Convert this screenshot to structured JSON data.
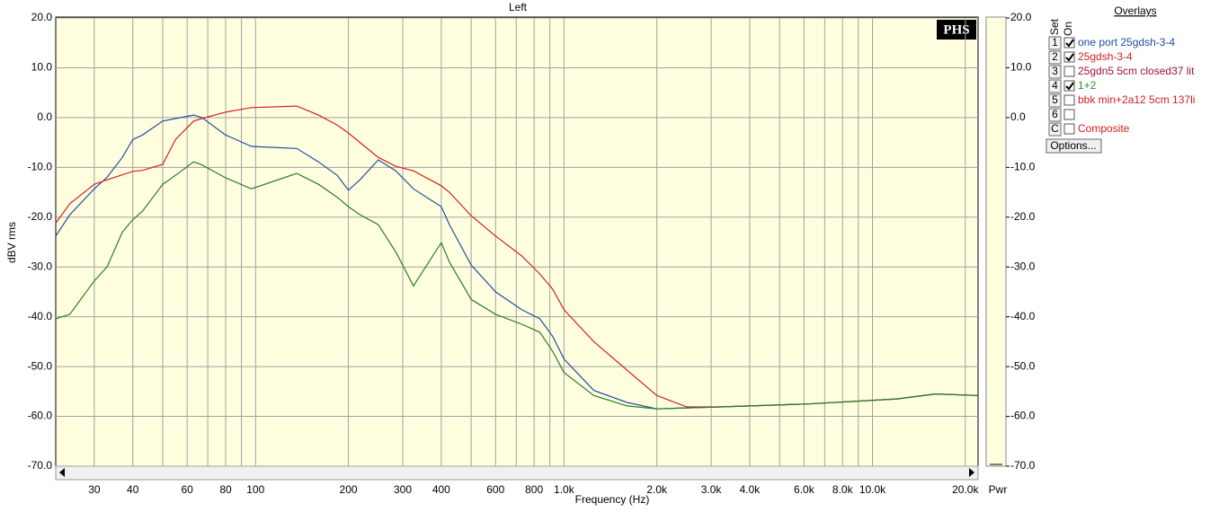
{
  "chart_data": {
    "type": "line",
    "title": "Left",
    "ylabel": "dBV rms",
    "xlabel": "Frequency (Hz)",
    "y2label": "Pwr",
    "badge": "PHS",
    "xlog": true,
    "grid": true,
    "xlim": [
      22.5,
      22000
    ],
    "ylim": [
      -70,
      20
    ],
    "yticks": [
      {
        "value": 20,
        "label": "20.0"
      },
      {
        "value": 10,
        "label": "10.0"
      },
      {
        "value": 0,
        "label": "0.0"
      },
      {
        "value": -10,
        "label": "-10.0"
      },
      {
        "value": -20,
        "label": "-20.0"
      },
      {
        "value": -30,
        "label": "-30.0"
      },
      {
        "value": -40,
        "label": "-40.0"
      },
      {
        "value": -50,
        "label": "-50.0"
      },
      {
        "value": -60,
        "label": "-60.0"
      },
      {
        "value": -70,
        "label": "-70.0"
      }
    ],
    "xticks": [
      30,
      40,
      60,
      80,
      100,
      200,
      300,
      400,
      600,
      800,
      {
        "value": 1000,
        "label": "1.0k"
      },
      {
        "value": 2000,
        "label": "2.0k"
      },
      {
        "value": 3000,
        "label": "3.0k"
      },
      {
        "value": 4000,
        "label": "4.0k"
      },
      {
        "value": 6000,
        "label": "6.0k"
      },
      {
        "value": 8000,
        "label": "8.0k"
      },
      {
        "value": 10000,
        "label": "10.0k"
      },
      {
        "value": 20000,
        "label": "20.0k"
      }
    ],
    "xgrid": [
      50,
      70,
      90,
      500,
      700,
      900,
      5000,
      7000,
      9000
    ],
    "x": [
      22.5,
      25,
      30,
      33,
      37,
      40,
      43,
      50,
      55,
      63,
      67,
      80,
      97,
      136,
      160,
      184,
      200,
      218,
      250,
      285,
      325,
      400,
      425,
      500,
      600,
      730,
      835,
      920,
      1000,
      1250,
      1600,
      2000,
      2500,
      3200,
      6200,
      12000,
      16000,
      22000
    ],
    "series": [
      {
        "name": "one port 25gdsh-3-4",
        "color": "#1f4ea0",
        "values": [
          -23.8,
          -19.5,
          -14.3,
          -12,
          -8,
          -4.4,
          -3.5,
          -0.7,
          -0.2,
          0.5,
          0,
          -3.5,
          -5.8,
          -6.2,
          -8.9,
          -11.6,
          -14.6,
          -12.5,
          -8.5,
          -10.7,
          -14.3,
          -17.9,
          -21.5,
          -29.6,
          -35,
          -38.6,
          -40.4,
          -44,
          -48.5,
          -54.8,
          -57.2,
          -58.5,
          -58.3,
          -58.1,
          -57.5,
          -56.5,
          -55.5,
          -55.8
        ]
      },
      {
        "name": "25gdsh-3-4",
        "color": "#d42020",
        "values": [
          -21.2,
          -17.3,
          -13.4,
          -12.5,
          -11.5,
          -10.8,
          -10.6,
          -9.4,
          -4.4,
          -0.7,
          -0.2,
          1.1,
          2,
          2.3,
          0.5,
          -1.5,
          -3.1,
          -5,
          -8,
          -9.8,
          -10.7,
          -13.7,
          -15,
          -19.7,
          -23.8,
          -27.8,
          -31.4,
          -34.5,
          -38.6,
          -45,
          -50.7,
          -55.8,
          -58.1,
          -58.1,
          -57.5,
          -56.5,
          -55.5,
          -55.8
        ]
      },
      {
        "name": "1+2",
        "color": "#2a7a2a",
        "values": [
          -40.4,
          -39.5,
          -32.8,
          -30,
          -23,
          -20.5,
          -18.8,
          -13.4,
          -11.6,
          -8.9,
          -9.5,
          -12.1,
          -14.3,
          -11.2,
          -13.4,
          -16,
          -17.9,
          -19.5,
          -21.5,
          -27,
          -33.8,
          -25.1,
          -29,
          -36.5,
          -39.5,
          -41.5,
          -43.1,
          -47,
          -51.2,
          -55.8,
          -57.9,
          -58.5,
          -58.3,
          -58.1,
          -57.5,
          -56.5,
          -55.5,
          -55.8
        ]
      }
    ]
  },
  "overlays": {
    "title": "Overlays",
    "set_label": "Set",
    "on_label": "On",
    "button": "Options...",
    "items": [
      {
        "set": "1",
        "checked": true,
        "label": "one port 25gdsh-3-4",
        "color": "#1f4ea0"
      },
      {
        "set": "2",
        "checked": true,
        "label": "25gdsh-3-4",
        "color": "#d42020"
      },
      {
        "set": "3",
        "checked": false,
        "label": "25gdn5 5cm closed37 lit",
        "color": "#a01040"
      },
      {
        "set": "4",
        "checked": true,
        "label": "1+2",
        "color": "#2a8a2a"
      },
      {
        "set": "5",
        "checked": false,
        "label": "bbk min+2a12 5cm 137li",
        "color": "#d42020"
      },
      {
        "set": "6",
        "checked": false
      },
      {
        "set": "C",
        "checked": false,
        "label": "Composite",
        "color": "#d42020"
      }
    ]
  }
}
